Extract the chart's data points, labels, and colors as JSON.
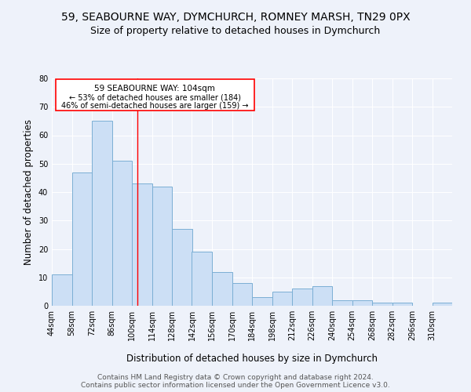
{
  "title": "59, SEABOURNE WAY, DYMCHURCH, ROMNEY MARSH, TN29 0PX",
  "subtitle": "Size of property relative to detached houses in Dymchurch",
  "xlabel": "Distribution of detached houses by size in Dymchurch",
  "ylabel": "Number of detached properties",
  "bin_edges": [
    44,
    58,
    72,
    86,
    100,
    114,
    128,
    142,
    156,
    170,
    184,
    198,
    212,
    226,
    240,
    254,
    268,
    282,
    296,
    310,
    324
  ],
  "bar_heights": [
    11,
    47,
    65,
    51,
    43,
    42,
    27,
    19,
    12,
    8,
    3,
    5,
    6,
    7,
    2,
    2,
    1,
    1,
    0,
    1
  ],
  "bar_facecolor": "#ccdff5",
  "bar_edgecolor": "#7bafd4",
  "red_line_x": 104,
  "annotation_line1": "59 SEABOURNE WAY: 104sqm",
  "annotation_line2": "← 53% of detached houses are smaller (184)",
  "annotation_line3": "46% of semi-detached houses are larger (159) →",
  "ylim": [
    0,
    80
  ],
  "yticks": [
    0,
    10,
    20,
    30,
    40,
    50,
    60,
    70,
    80
  ],
  "footnote1": "Contains HM Land Registry data © Crown copyright and database right 2024.",
  "footnote2": "Contains public sector information licensed under the Open Government Licence v3.0.",
  "background_color": "#eef2fa",
  "grid_color": "#ffffff",
  "title_fontsize": 10,
  "subtitle_fontsize": 9,
  "axis_label_fontsize": 8.5,
  "tick_fontsize": 7,
  "footnote_fontsize": 6.5
}
